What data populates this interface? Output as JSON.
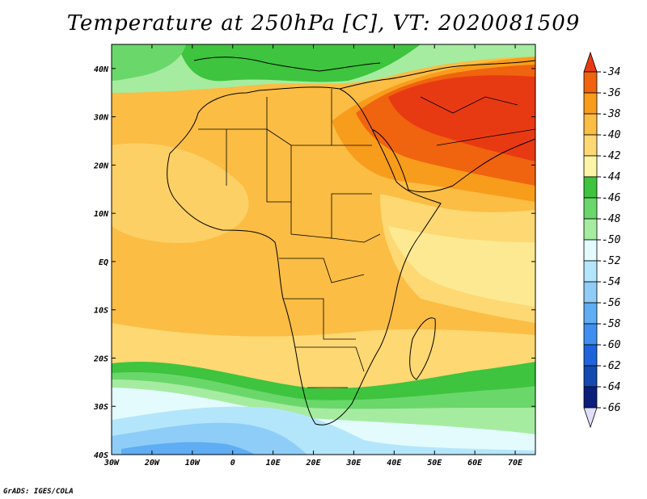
{
  "title": "Temperature at 250hPa [C], VT: 2020081509",
  "credit": "GrADS: IGES/COLA",
  "map": {
    "lon_range": [
      -30,
      75
    ],
    "lat_range": [
      -40,
      45
    ],
    "lon_ticks": [
      {
        "value": -30,
        "label": "30W"
      },
      {
        "value": -20,
        "label": "20W"
      },
      {
        "value": -10,
        "label": "10W"
      },
      {
        "value": 0,
        "label": "0"
      },
      {
        "value": 10,
        "label": "10E"
      },
      {
        "value": 20,
        "label": "20E"
      },
      {
        "value": 30,
        "label": "30E"
      },
      {
        "value": 40,
        "label": "40E"
      },
      {
        "value": 50,
        "label": "50E"
      },
      {
        "value": 60,
        "label": "60E"
      },
      {
        "value": 70,
        "label": "70E"
      }
    ],
    "lat_ticks": [
      {
        "value": 40,
        "label": "40N"
      },
      {
        "value": 30,
        "label": "30N"
      },
      {
        "value": 20,
        "label": "20N"
      },
      {
        "value": 10,
        "label": "10N"
      },
      {
        "value": 0,
        "label": "EQ"
      },
      {
        "value": -10,
        "label": "10S"
      },
      {
        "value": -20,
        "label": "20S"
      },
      {
        "value": -30,
        "label": "30S"
      },
      {
        "value": -40,
        "label": "40S"
      }
    ]
  },
  "colorbar": {
    "labels": [
      "-34",
      "-36",
      "-38",
      "-40",
      "-42",
      "-44",
      "-46",
      "-48",
      "-50",
      "-52",
      "-54",
      "-56",
      "-58",
      "-60",
      "-62",
      "-64",
      "-66"
    ],
    "colors": [
      "#e83a12",
      "#f0630f",
      "#f89c1b",
      "#fbbd43",
      "#fdd873",
      "#fdf5a6",
      "#3ec43e",
      "#6ad76b",
      "#a5eca0",
      "#e3fbfd",
      "#b4e6fb",
      "#8ecdf7",
      "#5fadf3",
      "#3f8ff0",
      "#1e65db",
      "#1449b0",
      "#0b1e7a",
      "#e0defa"
    ]
  }
}
